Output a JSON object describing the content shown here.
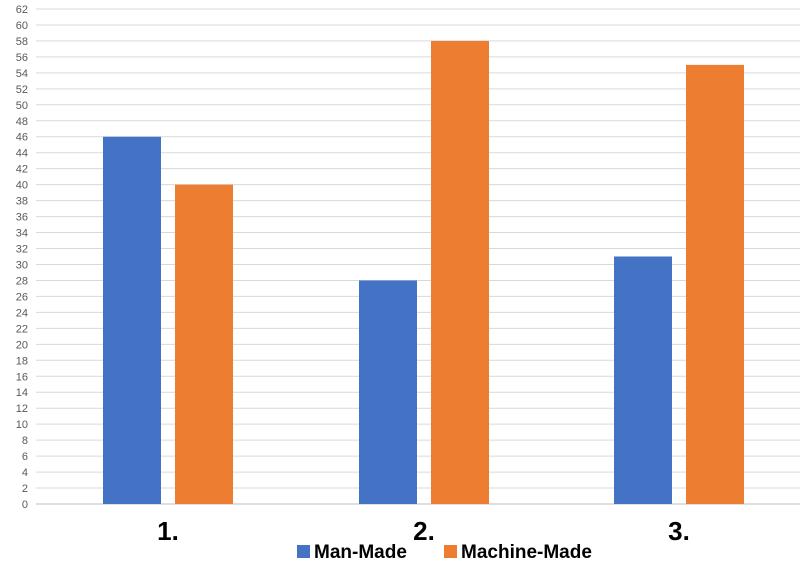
{
  "chart_data": {
    "type": "bar",
    "categories": [
      "1.",
      "2.",
      "3."
    ],
    "series": [
      {
        "name": "Man-Made",
        "values": [
          46,
          28,
          31
        ],
        "color": "#4472C4"
      },
      {
        "name": "Machine-Made",
        "values": [
          40,
          58,
          55
        ],
        "color": "#ED7D31"
      }
    ],
    "ylim": [
      0,
      62
    ],
    "ytick_step": 2,
    "grid": true,
    "legend_position": "bottom"
  }
}
